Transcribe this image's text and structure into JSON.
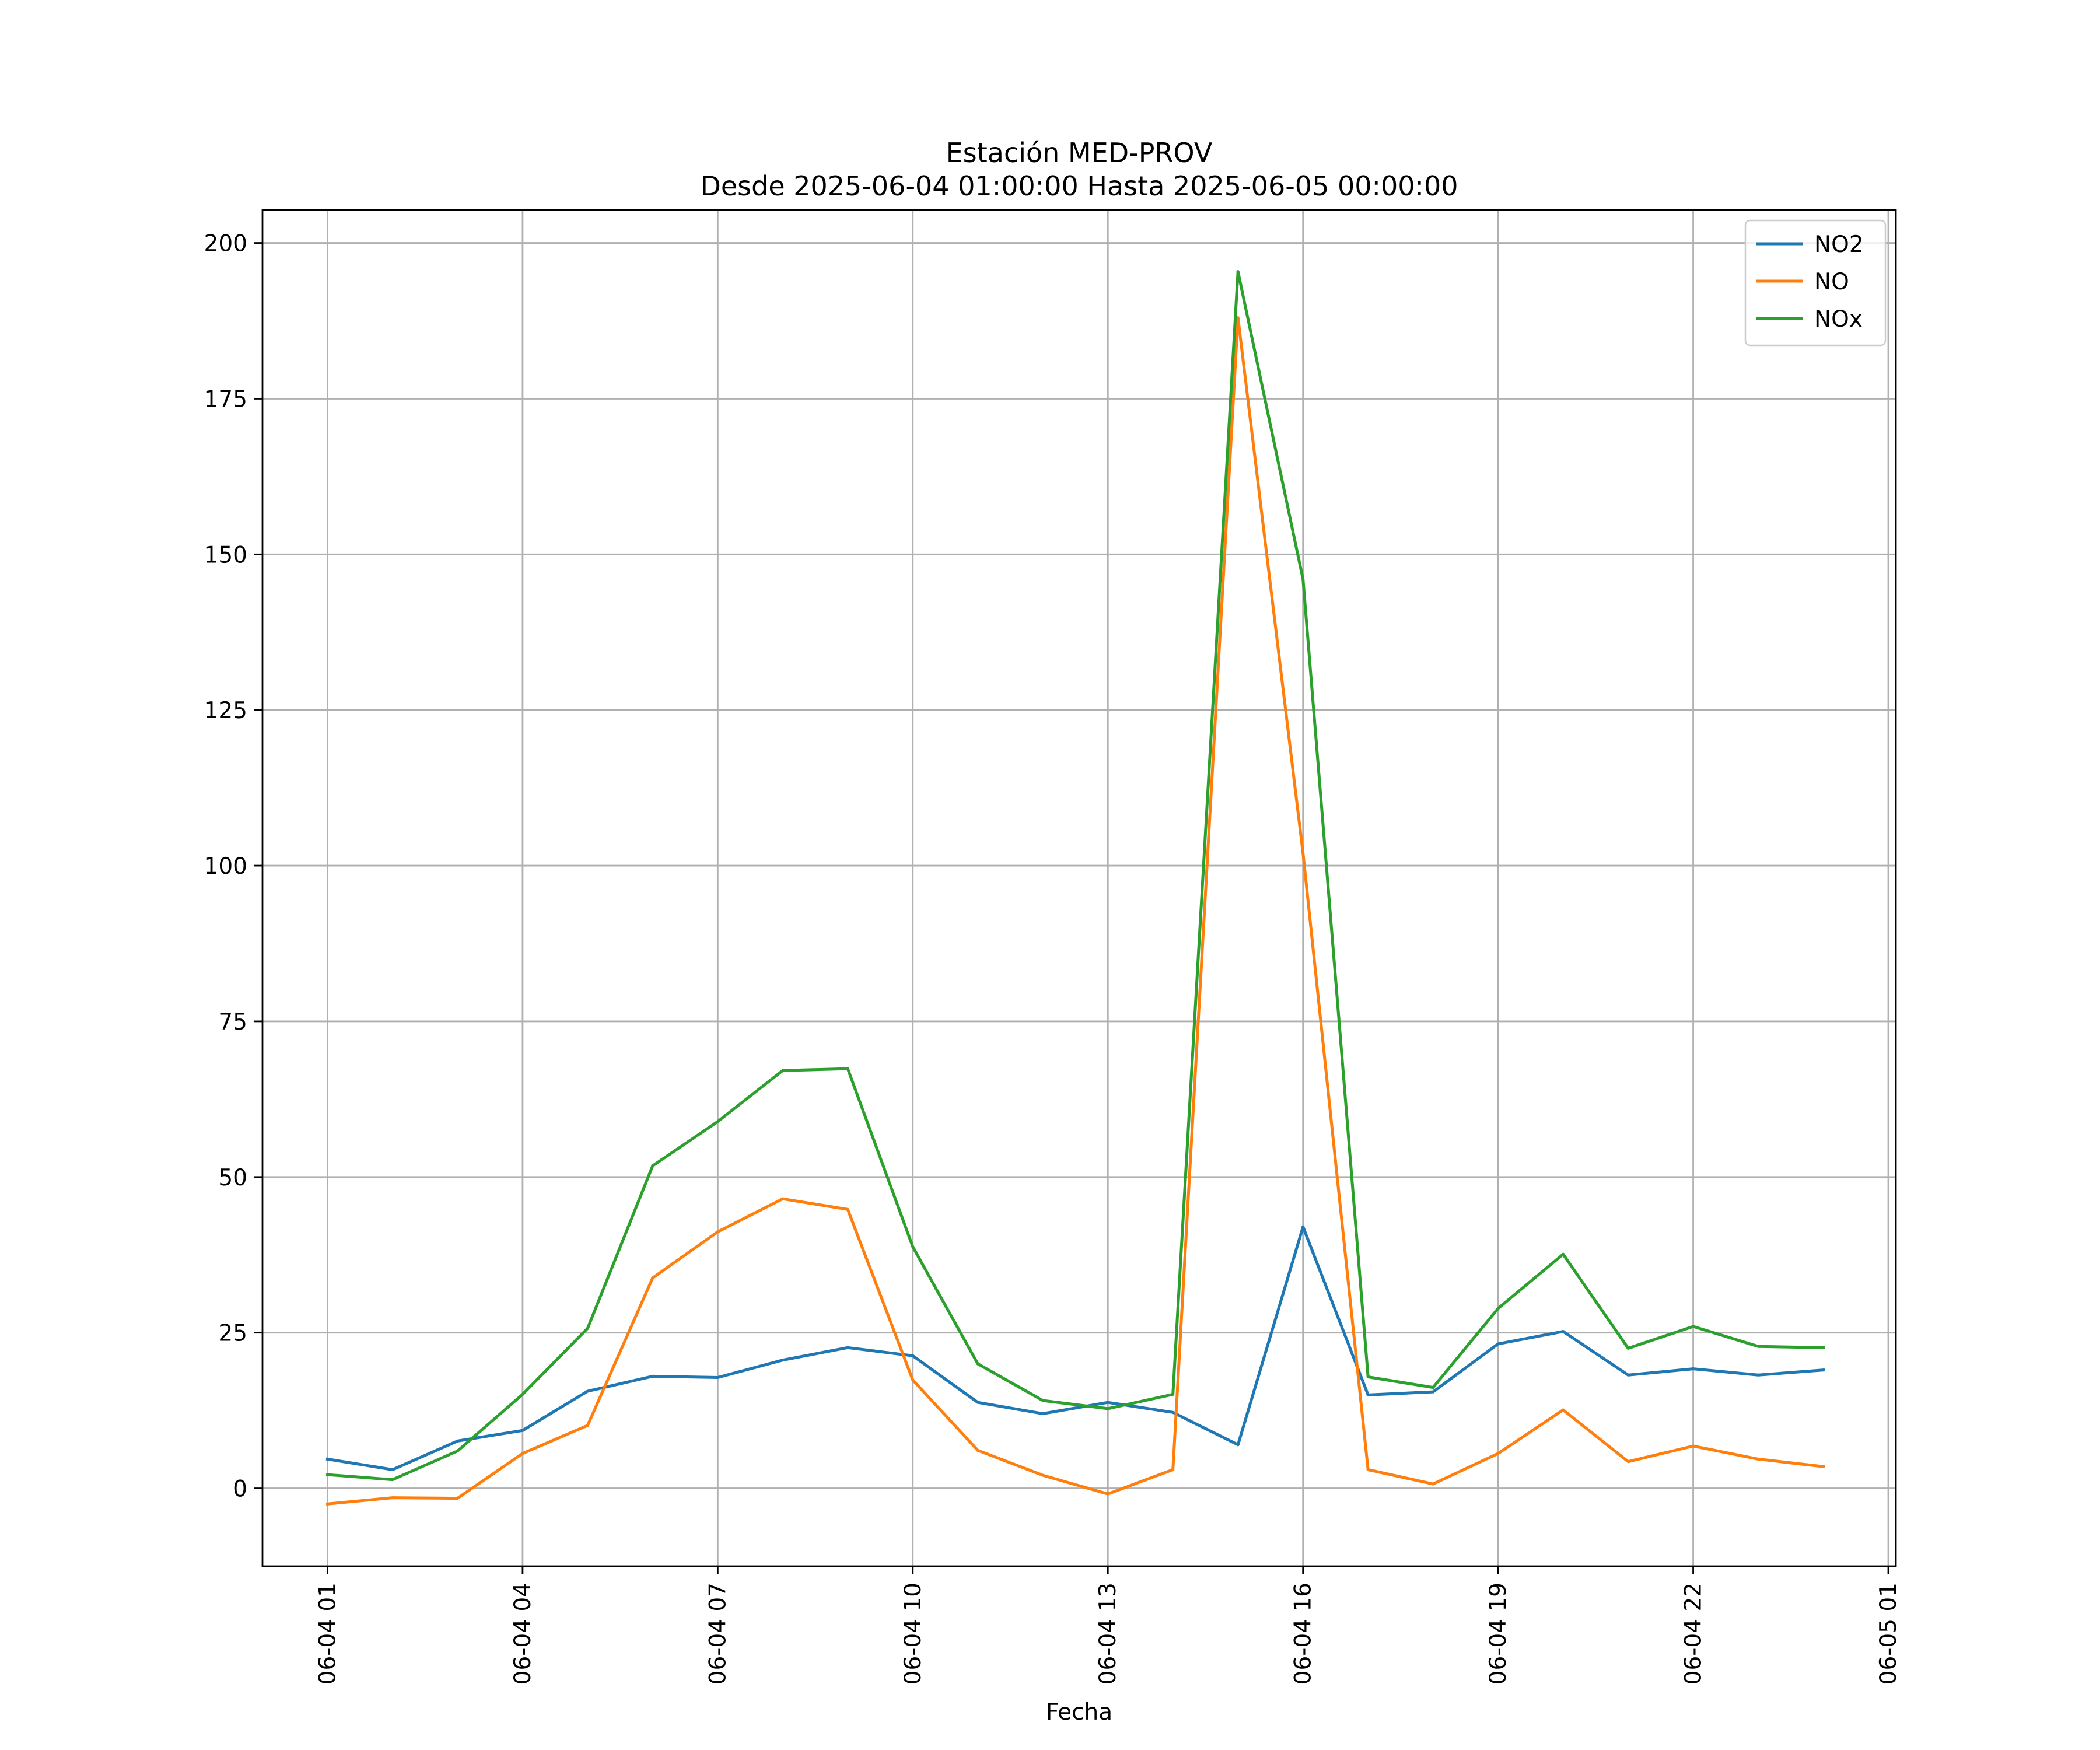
{
  "chart_data": {
    "type": "line",
    "title": "Estación MED-PROV",
    "subtitle": "Desde 2025-06-04 01:00:00 Hasta 2025-06-05 00:00:00",
    "xlabel": "Fecha",
    "ylabel": "",
    "x": [
      "2025-06-04 01:00",
      "2025-06-04 02:00",
      "2025-06-04 03:00",
      "2025-06-04 04:00",
      "2025-06-04 05:00",
      "2025-06-04 06:00",
      "2025-06-04 07:00",
      "2025-06-04 08:00",
      "2025-06-04 09:00",
      "2025-06-04 10:00",
      "2025-06-04 11:00",
      "2025-06-04 12:00",
      "2025-06-04 13:00",
      "2025-06-04 14:00",
      "2025-06-04 15:00",
      "2025-06-04 16:00",
      "2025-06-04 17:00",
      "2025-06-04 18:00",
      "2025-06-04 19:00",
      "2025-06-04 20:00",
      "2025-06-04 21:00",
      "2025-06-04 22:00",
      "2025-06-04 23:00",
      "2025-06-05 00:00"
    ],
    "xlim": [
      "2025-06-04 00:00",
      "2025-06-05 01:07"
    ],
    "x_ticks": [
      {
        "at": "2025-06-04 01:00",
        "label": "06-04 01"
      },
      {
        "at": "2025-06-04 04:00",
        "label": "06-04 04"
      },
      {
        "at": "2025-06-04 07:00",
        "label": "06-04 07"
      },
      {
        "at": "2025-06-04 10:00",
        "label": "06-04 10"
      },
      {
        "at": "2025-06-04 13:00",
        "label": "06-04 13"
      },
      {
        "at": "2025-06-04 16:00",
        "label": "06-04 16"
      },
      {
        "at": "2025-06-04 19:00",
        "label": "06-04 19"
      },
      {
        "at": "2025-06-04 22:00",
        "label": "06-04 22"
      },
      {
        "at": "2025-06-05 01:00",
        "label": "06-05 01"
      }
    ],
    "ylim": [
      -12.5,
      205.3
    ],
    "y_ticks": [
      0,
      25,
      50,
      75,
      100,
      125,
      150,
      175,
      200
    ],
    "grid": true,
    "legend_position": "top-right",
    "series": [
      {
        "name": "NO2",
        "color": "#1f77b4",
        "values": [
          4.7,
          3.0,
          7.6,
          9.3,
          15.6,
          18.0,
          17.8,
          20.6,
          22.6,
          21.3,
          13.8,
          12.0,
          13.8,
          12.2,
          7.0,
          42.0,
          15.0,
          15.5,
          23.2,
          25.2,
          18.2,
          19.2,
          18.2,
          19.0
        ]
      },
      {
        "name": "NO",
        "color": "#ff7f0e",
        "values": [
          -2.5,
          -1.5,
          -1.6,
          5.6,
          10.1,
          33.8,
          41.2,
          46.5,
          44.8,
          17.4,
          6.1,
          2.1,
          -0.9,
          3.0,
          188.0,
          102.0,
          3.0,
          0.7,
          5.6,
          12.6,
          4.3,
          6.8,
          4.7,
          3.5
        ]
      },
      {
        "name": "NOx",
        "color": "#2ca02c",
        "values": [
          2.2,
          1.4,
          6.0,
          15.1,
          25.7,
          51.8,
          58.9,
          67.1,
          67.4,
          38.8,
          20.0,
          14.1,
          12.8,
          15.1,
          195.4,
          146.0,
          17.9,
          16.2,
          28.9,
          37.6,
          22.5,
          26.0,
          22.8,
          22.6
        ]
      }
    ]
  }
}
